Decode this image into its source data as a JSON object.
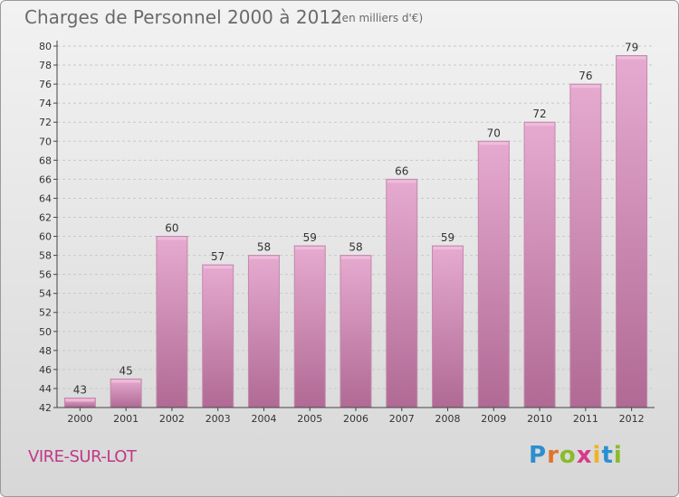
{
  "title": "Charges de Personnel 2000 à 2012",
  "subtitle": "(en milliers d'€)",
  "place": "VIRE-SUR-LOT",
  "logo": "Proxiti",
  "colors": {
    "bar_top": "#e4a6cc",
    "bar_bottom": "#b46e98",
    "bar_side": "#c986ad",
    "axis": "#444444",
    "place_text": "#c0398a"
  },
  "chart_data": {
    "type": "bar",
    "title": "Charges de Personnel 2000 à 2012",
    "subtitle": "(en milliers d'€)",
    "categories": [
      "2000",
      "2001",
      "2002",
      "2003",
      "2004",
      "2005",
      "2006",
      "2007",
      "2008",
      "2009",
      "2010",
      "2011",
      "2012"
    ],
    "values": [
      43,
      45,
      60,
      57,
      58,
      59,
      58,
      66,
      59,
      70,
      72,
      76,
      79
    ],
    "ylim": [
      42,
      80
    ],
    "yticks": [
      42,
      44,
      46,
      48,
      50,
      52,
      54,
      56,
      58,
      60,
      62,
      64,
      66,
      68,
      70,
      72,
      74,
      76,
      78,
      80
    ],
    "grid": true,
    "data_labels": true
  }
}
